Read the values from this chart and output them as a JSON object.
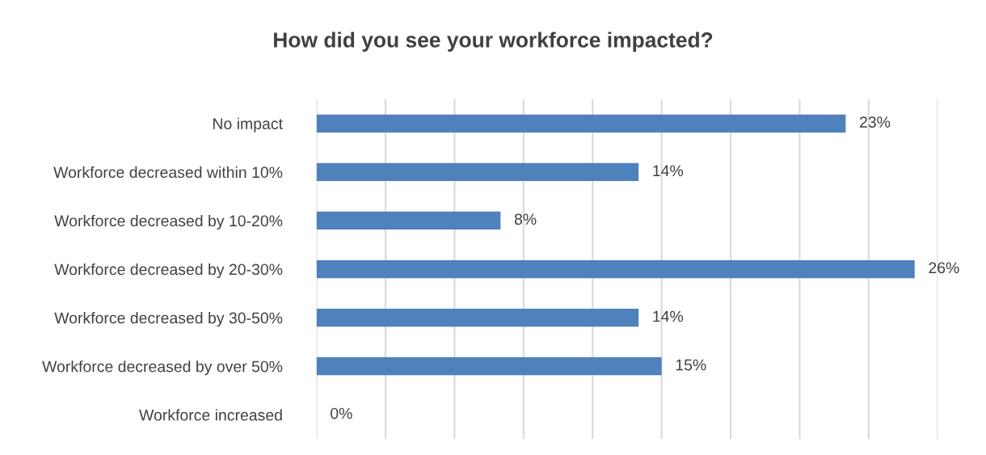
{
  "chart_data": {
    "type": "bar",
    "orientation": "horizontal",
    "title": "How did you see your workforce impacted?",
    "categories": [
      "No impact",
      "Workforce decreased within 10%",
      "Workforce decreased by 10-20%",
      "Workforce decreased by 20-30%",
      "Workforce decreased by 30-50%",
      "Workforce decreased by over 50%",
      "Workforce increased"
    ],
    "values": [
      23,
      14,
      8,
      26,
      14,
      15,
      0
    ],
    "value_labels": [
      "23%",
      "14%",
      "8%",
      "26%",
      "14%",
      "15%",
      "0%"
    ],
    "color": "#4f81bd",
    "xlim": [
      0,
      27
    ],
    "xticks": [
      {
        "value": 0,
        "label": null
      },
      {
        "value": 3,
        "label": null
      },
      {
        "value": 6,
        "label": null
      },
      {
        "value": 9,
        "label": null
      },
      {
        "value": 12,
        "label": null
      },
      {
        "value": 15,
        "label": null
      },
      {
        "value": 18,
        "label": null
      },
      {
        "value": 21,
        "label": null
      },
      {
        "value": 24,
        "label": null
      },
      {
        "value": 27,
        "label": null
      }
    ],
    "grid": "x",
    "tick_labels": "y"
  }
}
